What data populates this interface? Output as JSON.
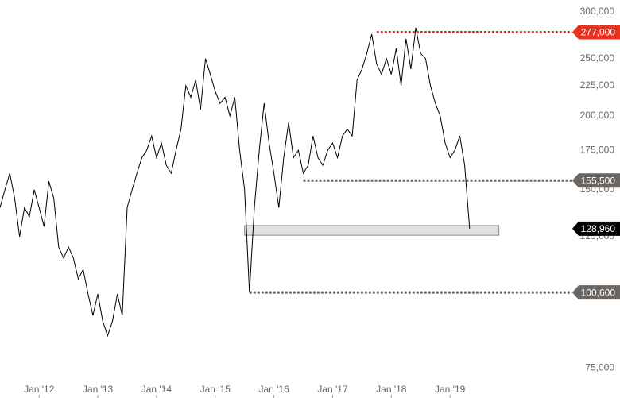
{
  "chart_data": {
    "type": "line",
    "log_scale": true,
    "color": "#000000",
    "x": [
      "2011-05",
      "2011-06",
      "2011-07",
      "2011-08",
      "2011-09",
      "2011-10",
      "2011-11",
      "2011-12",
      "2012-01",
      "2012-02",
      "2012-03",
      "2012-04",
      "2012-05",
      "2012-06",
      "2012-07",
      "2012-08",
      "2012-09",
      "2012-10",
      "2012-11",
      "2012-12",
      "2013-01",
      "2013-02",
      "2013-03",
      "2013-04",
      "2013-05",
      "2013-06",
      "2013-07",
      "2013-08",
      "2013-09",
      "2013-10",
      "2013-11",
      "2013-12",
      "2014-01",
      "2014-02",
      "2014-03",
      "2014-04",
      "2014-05",
      "2014-06",
      "2014-07",
      "2014-08",
      "2014-09",
      "2014-10",
      "2014-11",
      "2014-12",
      "2015-01",
      "2015-02",
      "2015-03",
      "2015-04",
      "2015-05",
      "2015-06",
      "2015-07",
      "2015-08",
      "2015-09",
      "2015-10",
      "2015-11",
      "2015-12",
      "2016-01",
      "2016-02",
      "2016-03",
      "2016-04",
      "2016-05",
      "2016-06",
      "2016-07",
      "2016-08",
      "2016-09",
      "2016-10",
      "2016-11",
      "2016-12",
      "2017-01",
      "2017-02",
      "2017-03",
      "2017-04",
      "2017-05",
      "2017-06",
      "2017-07",
      "2017-08",
      "2017-09",
      "2017-10",
      "2017-11",
      "2017-12",
      "2018-01",
      "2018-02",
      "2018-03",
      "2018-04",
      "2018-05",
      "2018-06",
      "2018-07",
      "2018-08",
      "2018-09",
      "2018-10",
      "2018-11",
      "2018-12",
      "2019-01",
      "2019-02",
      "2019-03",
      "2019-04",
      "2019-05"
    ],
    "values": [
      140000,
      150000,
      160000,
      145000,
      125000,
      140000,
      135000,
      150000,
      140000,
      130000,
      155000,
      145000,
      120000,
      115000,
      120000,
      115000,
      106000,
      110000,
      100000,
      92000,
      100000,
      90000,
      85000,
      90000,
      100000,
      92000,
      140000,
      150000,
      160000,
      170000,
      175000,
      185000,
      170000,
      180000,
      165000,
      160000,
      175000,
      190000,
      225000,
      215000,
      230000,
      205000,
      250000,
      235000,
      220000,
      210000,
      215000,
      200000,
      215000,
      175000,
      150000,
      100600,
      140000,
      175000,
      210000,
      180000,
      160000,
      140000,
      170000,
      195000,
      170000,
      175000,
      160000,
      165000,
      185000,
      170000,
      165000,
      175000,
      180000,
      170000,
      185000,
      190000,
      185000,
      230000,
      240000,
      255000,
      275000,
      245000,
      235000,
      250000,
      235000,
      260000,
      225000,
      270000,
      240000,
      282000,
      255000,
      250000,
      225000,
      210000,
      200000,
      180000,
      170000,
      175000,
      185000,
      165000,
      128960
    ],
    "xlim": [
      "2011-05",
      "2021-02"
    ],
    "xticks": [
      {
        "value": "2012-01",
        "label": "Jan '12"
      },
      {
        "value": "2013-01",
        "label": "Jan '13"
      },
      {
        "value": "2014-01",
        "label": "Jan '14"
      },
      {
        "value": "2015-01",
        "label": "Jan '15"
      },
      {
        "value": "2016-01",
        "label": "Jan '16"
      },
      {
        "value": "2017-01",
        "label": "Jan '17"
      },
      {
        "value": "2018-01",
        "label": "Jan '18"
      },
      {
        "value": "2019-01",
        "label": "Jan '19"
      }
    ],
    "ylim": [
      72300,
      314000
    ],
    "yticks": [
      {
        "value": 75000,
        "label": "75,000"
      },
      {
        "value": 125000,
        "label": "125,000"
      },
      {
        "value": 150000,
        "label": "150,000"
      },
      {
        "value": 175000,
        "label": "175,000"
      },
      {
        "value": 200000,
        "label": "200,000"
      },
      {
        "value": 225000,
        "label": "225,000"
      },
      {
        "value": 250000,
        "label": "250,000"
      },
      {
        "value": 300000,
        "label": "300,000"
      }
    ],
    "zone": {
      "low": 125700,
      "high": 130500,
      "start": "2015-07",
      "end": "2019-11",
      "color": "#e0e0e0"
    },
    "levels": [
      {
        "value": 277000,
        "label": "277,000",
        "start": "2017-10",
        "color": "#e8321e",
        "line": true
      },
      {
        "value": 155500,
        "label": "155,500",
        "start": "2016-07",
        "color": "#6b6561",
        "line": true
      },
      {
        "value": 100600,
        "label": "100,600",
        "start": "2015-08",
        "color": "#6b6561",
        "line": true
      },
      {
        "value": 128960,
        "label": "128,960",
        "start": "2019-05",
        "color": "#000000",
        "line": false
      }
    ]
  }
}
